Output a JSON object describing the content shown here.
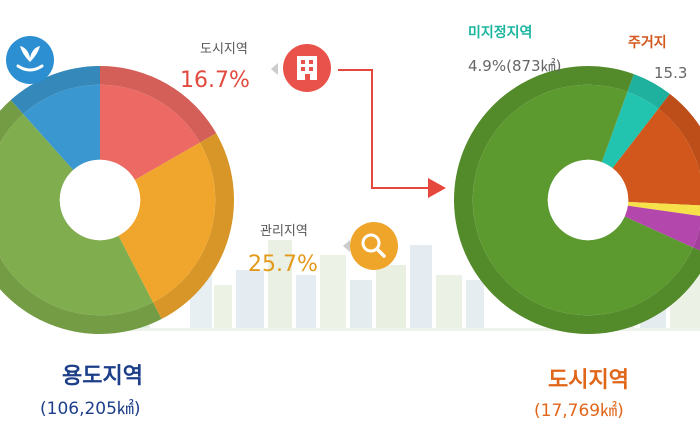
{
  "chart_data": [
    {
      "type": "pie",
      "categories": [
        "도시지역",
        "관리지역",
        "",
        ""
      ],
      "values": [
        16.7,
        25.7,
        46.0,
        11.6
      ],
      "colors": [
        "#ec6a63",
        "#f0a62c",
        "#80ad4d",
        "#3a97cf"
      ],
      "title": "용도지역",
      "subtitle": "(106,205㎢)"
    },
    {
      "type": "pie",
      "categories": [
        "미지정지역",
        "주거지",
        "",
        "",
        ""
      ],
      "values": [
        4.9,
        15.3,
        1.5,
        4.5,
        73.8
      ],
      "colors": [
        "#22c4b0",
        "#d2571c",
        "#f6e14a",
        "#b447ac",
        "#5c9a2f"
      ],
      "title": "도시지역",
      "subtitle": "(17,769㎢)"
    }
  ],
  "labels": {
    "left_urban_name": "도시지역",
    "left_urban_pct": "16.7%",
    "left_mgmt_name": "관리지역",
    "left_mgmt_pct": "25.7%",
    "right_unassigned_name": "미지정지역",
    "right_unassigned_value": "4.9%(873㎢)",
    "right_res_name": "주거지",
    "right_res_value": "15.3"
  },
  "icons": {
    "leaf": "leaf-hand-icon",
    "building": "building-icon",
    "search": "search-icon"
  }
}
